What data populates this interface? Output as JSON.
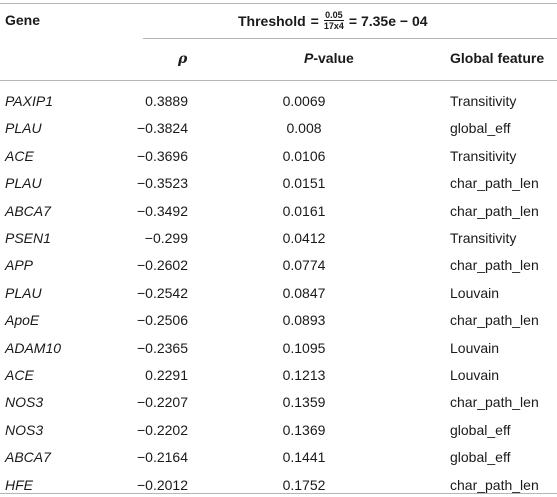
{
  "header": {
    "gene_label": "Gene",
    "threshold_label": "Threshold",
    "threshold_eq": "=",
    "threshold_num": "0.05",
    "threshold_den": "17x4",
    "threshold_value": "= 7.35e − 04",
    "rho_label": "ρ",
    "pvalue_prefix": "P",
    "pvalue_suffix": "-value",
    "feature_label": "Global feature"
  },
  "rows": [
    {
      "gene": "PAXIP1",
      "rho": "0.3889",
      "pvalue": "0.0069",
      "feature": "Transitivity"
    },
    {
      "gene": "PLAU",
      "rho": "−0.3824",
      "pvalue": "0.008",
      "feature": "global_eff"
    },
    {
      "gene": "ACE",
      "rho": "−0.3696",
      "pvalue": "0.0106",
      "feature": "Transitivity"
    },
    {
      "gene": "PLAU",
      "rho": "−0.3523",
      "pvalue": "0.0151",
      "feature": "char_path_len"
    },
    {
      "gene": "ABCA7",
      "rho": "−0.3492",
      "pvalue": "0.0161",
      "feature": "char_path_len"
    },
    {
      "gene": "PSEN1",
      "rho": "−0.299",
      "pvalue": "0.0412",
      "feature": "Transitivity"
    },
    {
      "gene": "APP",
      "rho": "−0.2602",
      "pvalue": "0.0774",
      "feature": "char_path_len"
    },
    {
      "gene": "PLAU",
      "rho": "−0.2542",
      "pvalue": "0.0847",
      "feature": "Louvain"
    },
    {
      "gene": "ApoE",
      "rho": "−0.2506",
      "pvalue": "0.0893",
      "feature": "char_path_len"
    },
    {
      "gene": "ADAM10",
      "rho": "−0.2365",
      "pvalue": "0.1095",
      "feature": "Louvain"
    },
    {
      "gene": "ACE",
      "rho": "0.2291",
      "pvalue": "0.1213",
      "feature": "Louvain"
    },
    {
      "gene": "NOS3",
      "rho": "−0.2207",
      "pvalue": "0.1359",
      "feature": "char_path_len"
    },
    {
      "gene": "NOS3",
      "rho": "−0.2202",
      "pvalue": "0.1369",
      "feature": "global_eff"
    },
    {
      "gene": "ABCA7",
      "rho": "−0.2164",
      "pvalue": "0.1441",
      "feature": "global_eff"
    },
    {
      "gene": "HFE",
      "rho": "−0.2012",
      "pvalue": "0.1752",
      "feature": "char_path_len"
    }
  ]
}
